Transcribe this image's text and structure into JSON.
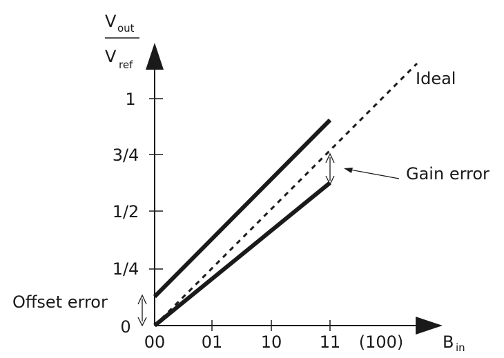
{
  "axes": {
    "y_label_main_num": "V",
    "y_label_sub_num": "out",
    "y_label_main_den": "V",
    "y_label_sub_den": "ref",
    "x_label_main": "B",
    "x_label_sub": "in",
    "y_ticks": [
      "0",
      "1/4",
      "1/2",
      "3/4",
      "1"
    ],
    "x_ticks": [
      "00",
      "01",
      "10",
      "11",
      "(100)"
    ]
  },
  "annotations": {
    "ideal": "Ideal",
    "gain_error": "Gain error",
    "offset_error": "Offset error"
  },
  "colors": {
    "ink": "#1a1a1a"
  }
}
